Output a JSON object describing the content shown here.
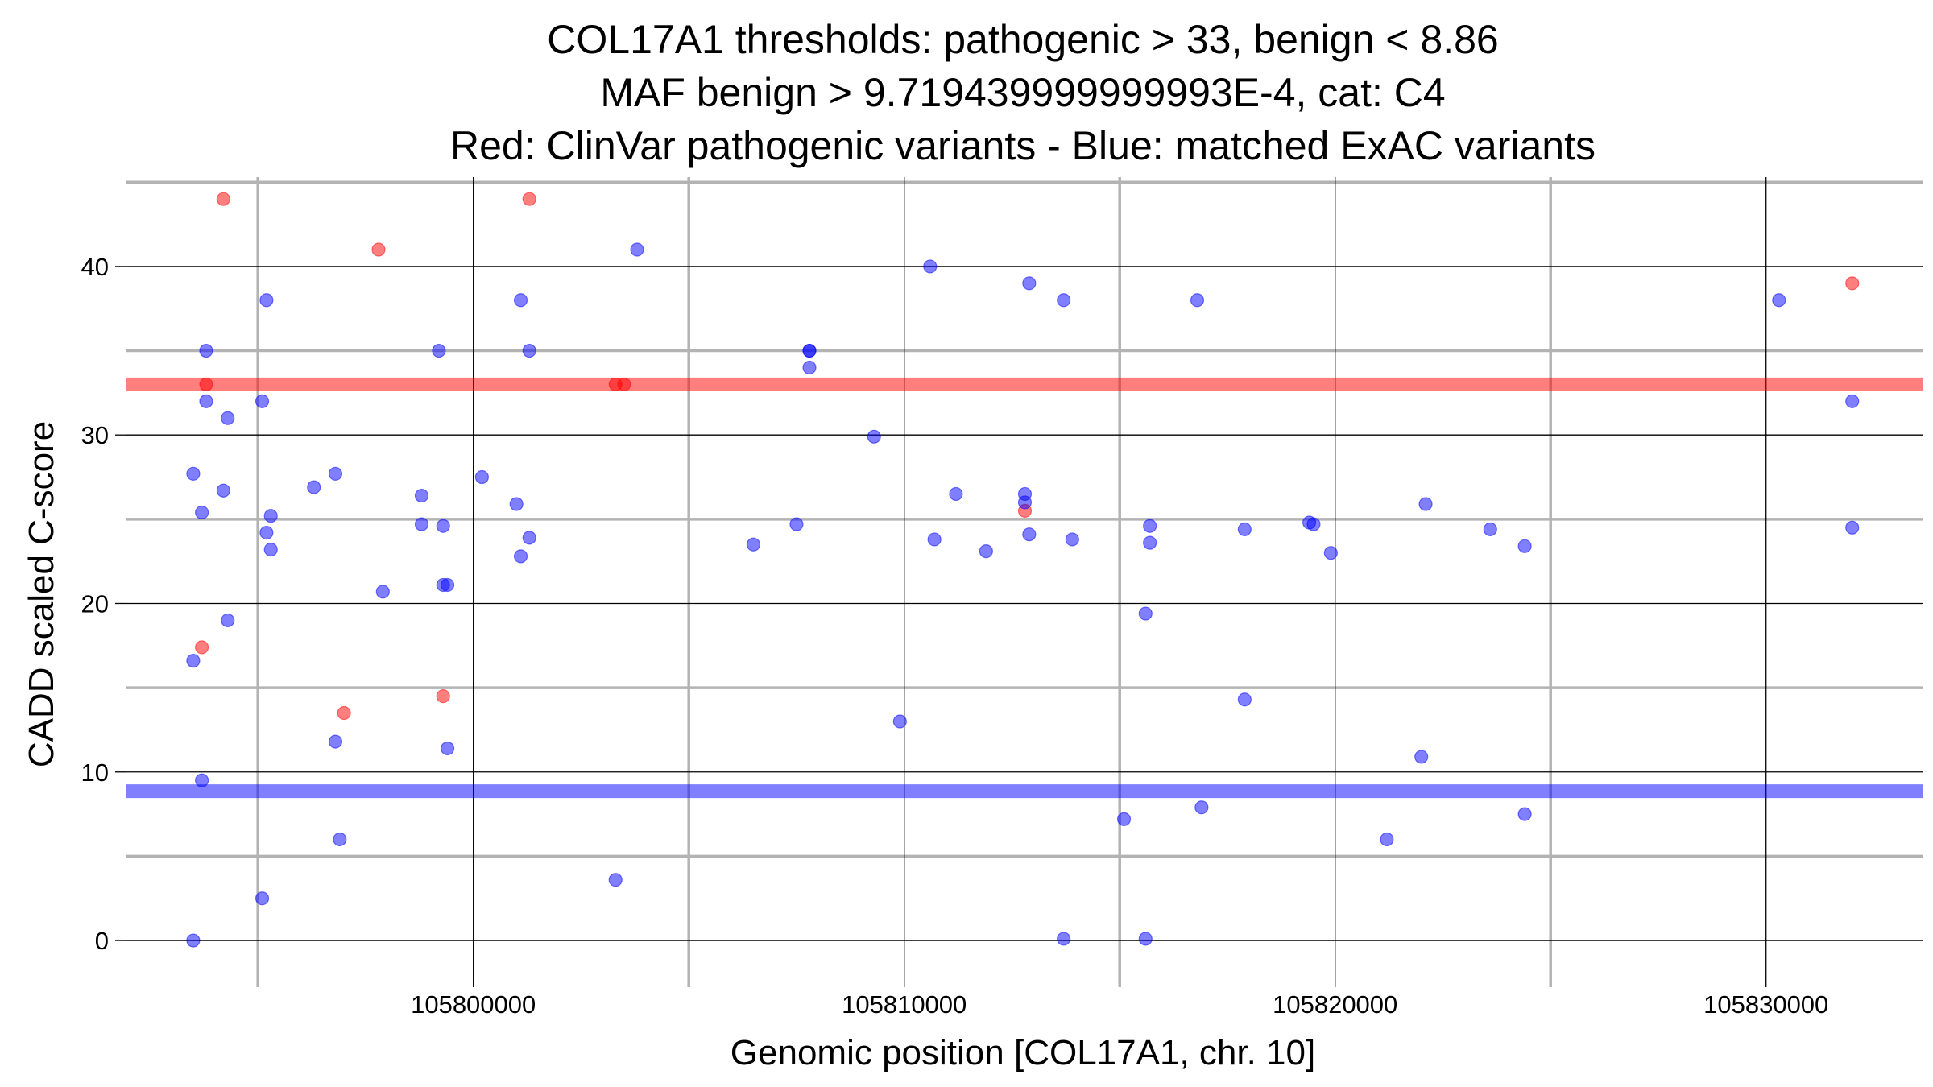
{
  "chart_data": {
    "type": "scatter",
    "title_lines": [
      "COL17A1 thresholds: pathogenic > 33, benign < 8.86",
      "MAF benign > 9.719439999999993E-4, cat: C4",
      "Red: ClinVar pathogenic variants - Blue: matched ExAC variants"
    ],
    "xlabel": "Genomic position [COL17A1, chr. 10]",
    "ylabel": "CADD scaled C-score",
    "xlim": [
      105791950,
      105833650
    ],
    "ylim": [
      -2.1,
      45.3
    ],
    "x_major_ticks": [
      105800000,
      105810000,
      105820000,
      105830000
    ],
    "x_minor_ticks": [
      105795000,
      105805000,
      105815000,
      105825000
    ],
    "y_major_ticks": [
      0,
      10,
      20,
      30,
      40
    ],
    "y_minor_ticks": [
      5,
      15,
      25,
      35,
      45
    ],
    "x_tick_labels": [
      "105800000",
      "105810000",
      "105820000",
      "105830000"
    ],
    "y_tick_labels": [
      "0",
      "10",
      "20",
      "30",
      "40"
    ],
    "thresholds": [
      {
        "name": "pathogenic",
        "value": 33,
        "color": "#ff0000"
      },
      {
        "name": "benign",
        "value": 8.86,
        "color": "#0000ff"
      }
    ],
    "colors": {
      "pathogenic": "#ff0000",
      "benign": "#0000ff",
      "grid_major": "#000000",
      "grid_minor": "#b3b3b3"
    },
    "series": [
      {
        "name": "ClinVar pathogenic variants",
        "color": "#ff0000",
        "points": [
          [
            105794200,
            44
          ],
          [
            105797800,
            41
          ],
          [
            105801300,
            44
          ],
          [
            105803300,
            33
          ],
          [
            105803500,
            33
          ],
          [
            105793800,
            33
          ],
          [
            105793700,
            17.4
          ],
          [
            105797000,
            13.5
          ],
          [
            105799300,
            14.5
          ],
          [
            105812800,
            25.5
          ],
          [
            105832000,
            39
          ]
        ]
      },
      {
        "name": "matched ExAC variants",
        "color": "#0000ff",
        "points": [
          [
            105795200,
            38
          ],
          [
            105793800,
            35
          ],
          [
            105799200,
            35
          ],
          [
            105801100,
            38
          ],
          [
            105801300,
            35
          ],
          [
            105803800,
            41
          ],
          [
            105807800,
            35
          ],
          [
            105807800,
            35
          ],
          [
            105807800,
            34
          ],
          [
            105810600,
            40
          ],
          [
            105812900,
            39
          ],
          [
            105813700,
            38
          ],
          [
            105816800,
            38
          ],
          [
            105830300,
            38
          ],
          [
            105832000,
            32
          ],
          [
            105793800,
            32
          ],
          [
            105794300,
            31
          ],
          [
            105795100,
            32
          ],
          [
            105809300,
            29.9
          ],
          [
            105793500,
            27.7
          ],
          [
            105794200,
            26.7
          ],
          [
            105793700,
            25.4
          ],
          [
            105795200,
            24.2
          ],
          [
            105795300,
            25.2
          ],
          [
            105795300,
            23.2
          ],
          [
            105796300,
            26.9
          ],
          [
            105796800,
            27.7
          ],
          [
            105798800,
            26.4
          ],
          [
            105798800,
            24.7
          ],
          [
            105799300,
            24.6
          ],
          [
            105800200,
            27.5
          ],
          [
            105801000,
            25.9
          ],
          [
            105801100,
            22.8
          ],
          [
            105801300,
            23.9
          ],
          [
            105797900,
            20.7
          ],
          [
            105799300,
            21.1
          ],
          [
            105799400,
            21.1
          ],
          [
            105794300,
            19
          ],
          [
            105806500,
            23.5
          ],
          [
            105807500,
            24.7
          ],
          [
            105810700,
            23.8
          ],
          [
            105811200,
            26.5
          ],
          [
            105811900,
            23.1
          ],
          [
            105812800,
            26.5
          ],
          [
            105812800,
            26
          ],
          [
            105812900,
            24.1
          ],
          [
            105813900,
            23.8
          ],
          [
            105815700,
            24.6
          ],
          [
            105815700,
            23.6
          ],
          [
            105815600,
            19.4
          ],
          [
            105817900,
            24.4
          ],
          [
            105819400,
            24.8
          ],
          [
            105819500,
            24.7
          ],
          [
            105819900,
            23
          ],
          [
            105822100,
            25.9
          ],
          [
            105823600,
            24.4
          ],
          [
            105824400,
            23.4
          ],
          [
            105832000,
            24.5
          ],
          [
            105793500,
            16.6
          ],
          [
            105796800,
            11.8
          ],
          [
            105799400,
            11.4
          ],
          [
            105809900,
            13
          ],
          [
            105817900,
            14.3
          ],
          [
            105822000,
            10.9
          ],
          [
            105793700,
            9.5
          ],
          [
            105815100,
            7.2
          ],
          [
            105816900,
            7.9
          ],
          [
            105824400,
            7.5
          ],
          [
            105796900,
            6
          ],
          [
            105821200,
            6
          ],
          [
            105803300,
            3.6
          ],
          [
            105795100,
            2.5
          ],
          [
            105793500,
            0
          ],
          [
            105813700,
            0.1
          ],
          [
            105815600,
            0.1
          ]
        ]
      }
    ]
  }
}
